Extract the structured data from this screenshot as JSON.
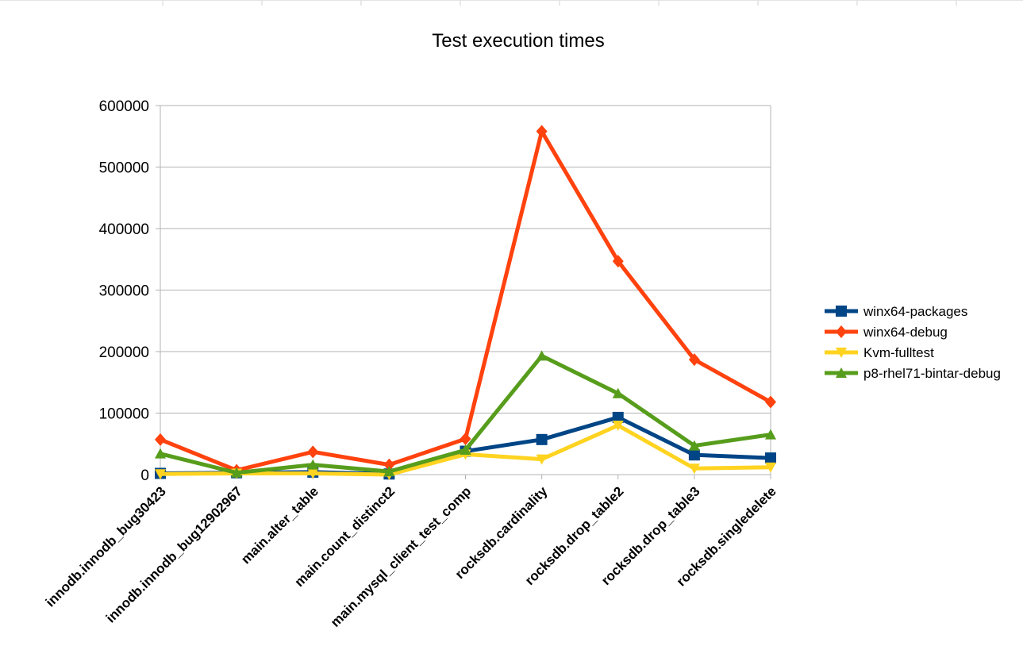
{
  "chart_data": {
    "type": "line",
    "title": "Test execution times",
    "xlabel": "",
    "ylabel": "",
    "ylim": [
      0,
      600000
    ],
    "yticks": [
      0,
      100000,
      200000,
      300000,
      400000,
      500000,
      600000
    ],
    "grid": true,
    "legend_position": "right",
    "categories": [
      "innodb.innodb_bug30423",
      "innodb.innodb_bug12902967",
      "main.alter_table",
      "main.count_distinct2",
      "main.mysql_client_test_comp",
      "rocksdb.cardinality",
      "rocksdb.drop_table2",
      "rocksdb.drop_table3",
      "rocksdb.singledelete"
    ],
    "series": [
      {
        "name": "winx64-packages",
        "color": "#004586",
        "marker": "square",
        "values": [
          2000,
          3000,
          4000,
          1000,
          38000,
          57000,
          93000,
          32000,
          27000
        ]
      },
      {
        "name": "winx64-debug",
        "color": "#ff420e",
        "marker": "diamond",
        "values": [
          57000,
          7000,
          37000,
          16000,
          58000,
          558000,
          347000,
          187000,
          118000
        ]
      },
      {
        "name": "Kvm-fulltest",
        "color": "#ffd320",
        "marker": "triangle-down",
        "values": [
          1000,
          2000,
          2000,
          0,
          33000,
          25000,
          80000,
          10000,
          12000
        ]
      },
      {
        "name": "p8-rhel71-bintar-debug",
        "color": "#579d1c",
        "marker": "triangle-up",
        "values": [
          34000,
          3000,
          16000,
          5000,
          40000,
          193000,
          132000,
          47000,
          65000
        ]
      }
    ]
  }
}
